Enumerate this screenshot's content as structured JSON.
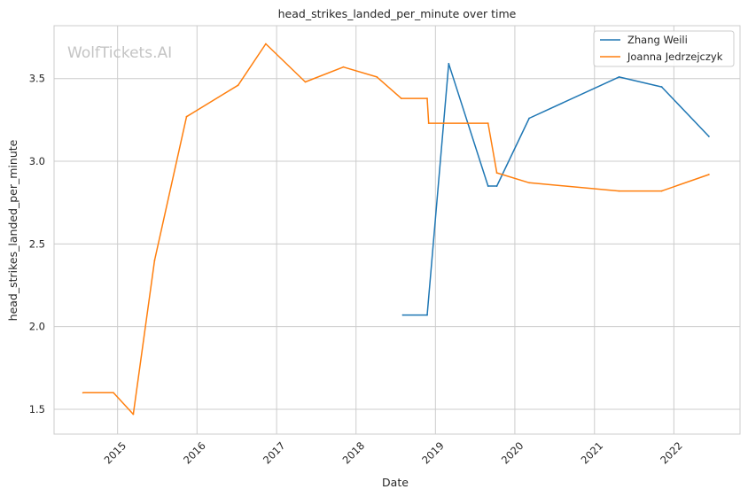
{
  "chart_data": {
    "type": "line",
    "title": "head_strikes_landed_per_minute over time",
    "xlabel": "Date",
    "ylabel": "head_strikes_landed_per_minute",
    "watermark": "WolfTickets.AI",
    "xlim": [
      "2014-03-15",
      "2022-11-01"
    ],
    "ylim": [
      1.35,
      3.82
    ],
    "x_ticks": [
      "2015",
      "2016",
      "2017",
      "2018",
      "2019",
      "2020",
      "2021",
      "2022"
    ],
    "y_ticks": [
      1.5,
      2.0,
      2.5,
      3.0,
      3.5
    ],
    "y_tick_labels": [
      "1.5",
      "2.0",
      "2.5",
      "3.0",
      "3.5"
    ],
    "grid": true,
    "legend_position": "top-right",
    "series": [
      {
        "name": "Zhang Weili",
        "color": "#1f77b4",
        "points": [
          {
            "x": "2018-08-04",
            "y": 2.07
          },
          {
            "x": "2018-11-24",
            "y": 2.07
          },
          {
            "x": "2019-03-03",
            "y": 3.59
          },
          {
            "x": "2019-08-31",
            "y": 2.85
          },
          {
            "x": "2019-10-10",
            "y": 2.85
          },
          {
            "x": "2020-03-07",
            "y": 3.26
          },
          {
            "x": "2021-04-24",
            "y": 3.51
          },
          {
            "x": "2021-11-06",
            "y": 3.45
          },
          {
            "x": "2022-06-11",
            "y": 3.15
          }
        ]
      },
      {
        "name": "Joanna Jedrzejczyk",
        "color": "#ff7f0e",
        "points": [
          {
            "x": "2014-07-26",
            "y": 1.6
          },
          {
            "x": "2014-12-13",
            "y": 1.6
          },
          {
            "x": "2015-03-14",
            "y": 1.47
          },
          {
            "x": "2015-06-20",
            "y": 2.4
          },
          {
            "x": "2015-11-14",
            "y": 3.27
          },
          {
            "x": "2016-07-08",
            "y": 3.46
          },
          {
            "x": "2016-11-12",
            "y": 3.71
          },
          {
            "x": "2017-05-13",
            "y": 3.48
          },
          {
            "x": "2017-11-04",
            "y": 3.57
          },
          {
            "x": "2018-04-07",
            "y": 3.51
          },
          {
            "x": "2018-07-28",
            "y": 3.38
          },
          {
            "x": "2018-11-24",
            "y": 3.38
          },
          {
            "x": "2018-12-01",
            "y": 3.23
          },
          {
            "x": "2019-08-31",
            "y": 3.23
          },
          {
            "x": "2019-10-10",
            "y": 2.93
          },
          {
            "x": "2020-03-07",
            "y": 2.87
          },
          {
            "x": "2021-04-24",
            "y": 2.82
          },
          {
            "x": "2021-11-06",
            "y": 2.82
          },
          {
            "x": "2022-06-11",
            "y": 2.92
          }
        ]
      }
    ]
  }
}
